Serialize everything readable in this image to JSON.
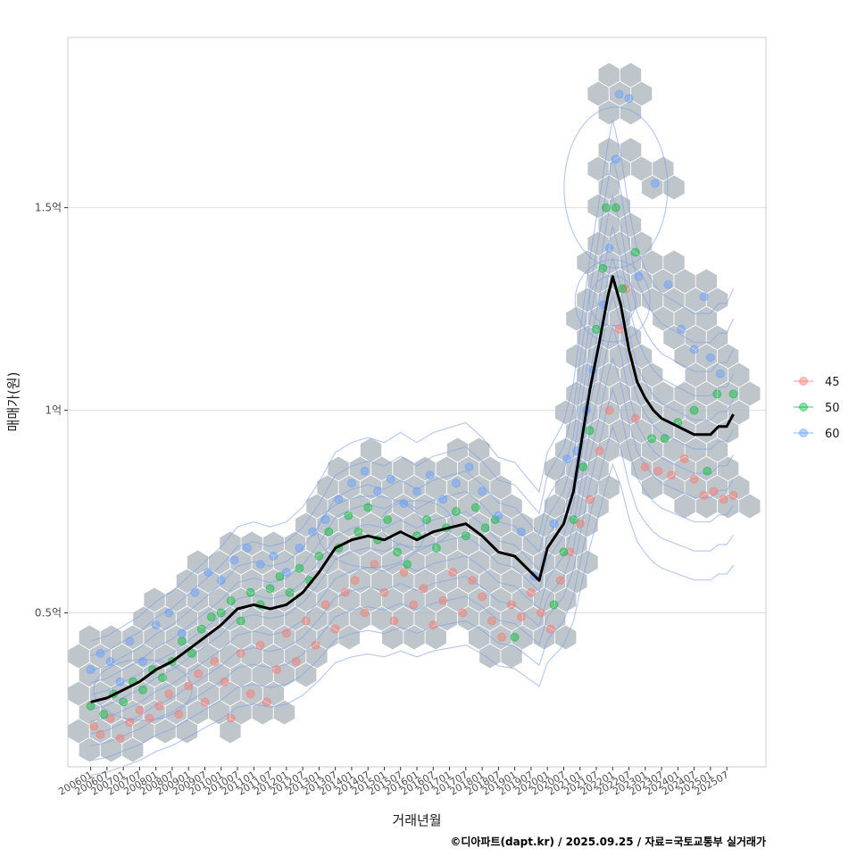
{
  "chart_data": {
    "type": "scatter",
    "title": "",
    "xlabel": "거래년월",
    "ylabel": "매매가(원)",
    "caption": "©디아파트(dapt.kr) / 2025.09.25 / 자료=국토교통부 실거래가",
    "x_tick_labels": [
      "200601",
      "200607",
      "200701",
      "200707",
      "200801",
      "200807",
      "200901",
      "200907",
      "201001",
      "201007",
      "201101",
      "201107",
      "201201",
      "201207",
      "201301",
      "201307",
      "201401",
      "201407",
      "201501",
      "201507",
      "201601",
      "201607",
      "201701",
      "201707",
      "201801",
      "201807",
      "201901",
      "201907",
      "202001",
      "202007",
      "202101",
      "202107",
      "202201",
      "202207",
      "202301",
      "202307",
      "202401",
      "202407",
      "202501",
      "202507"
    ],
    "y_ticks": [
      {
        "value": 0.5,
        "label": "0.5억"
      },
      {
        "value": 1.0,
        "label": "1억"
      },
      {
        "value": 1.5,
        "label": "1.5억"
      }
    ],
    "ylim": [
      0.12,
      1.92
    ],
    "xlim": [
      2005.3,
      2026.7
    ],
    "grid": true,
    "legend": {
      "position": "right",
      "entries": [
        {
          "label": "45",
          "color": "#F8766D"
        },
        {
          "label": "50",
          "color": "#00BA38"
        },
        {
          "label": "60",
          "color": "#619CFF"
        }
      ]
    },
    "colors": {
      "hex": "#b4bcc2",
      "contour": "#7d9ee8",
      "line": "#000000",
      "grid": "#dedede",
      "panel_border": "#cccccc"
    },
    "trend_line": {
      "name": "moving average price (억)",
      "x": [
        2006.0,
        2006.5,
        2007.0,
        2007.5,
        2008.0,
        2008.5,
        2009.0,
        2009.5,
        2010.0,
        2010.5,
        2011.0,
        2011.5,
        2012.0,
        2012.5,
        2013.0,
        2013.5,
        2014.0,
        2014.5,
        2015.0,
        2015.5,
        2016.0,
        2016.5,
        2017.0,
        2017.5,
        2018.0,
        2018.5,
        2019.0,
        2019.5,
        2019.75,
        2020.0,
        2020.5,
        2020.8,
        2021.0,
        2021.3,
        2021.6,
        2021.85,
        2022.0,
        2022.25,
        2022.5,
        2022.75,
        2023.0,
        2023.25,
        2023.5,
        2023.75,
        2024.0,
        2024.25,
        2024.5,
        2024.75,
        2025.0,
        2025.25,
        2025.5,
        2025.7
      ],
      "y": [
        0.28,
        0.29,
        0.31,
        0.33,
        0.36,
        0.38,
        0.41,
        0.44,
        0.47,
        0.51,
        0.52,
        0.51,
        0.52,
        0.55,
        0.6,
        0.66,
        0.68,
        0.69,
        0.68,
        0.7,
        0.68,
        0.7,
        0.71,
        0.72,
        0.69,
        0.65,
        0.64,
        0.6,
        0.58,
        0.66,
        0.72,
        0.8,
        0.9,
        1.05,
        1.17,
        1.28,
        1.33,
        1.26,
        1.15,
        1.07,
        1.03,
        1.0,
        0.98,
        0.97,
        0.96,
        0.95,
        0.94,
        0.94,
        0.94,
        0.96,
        0.96,
        0.99
      ]
    },
    "series": [
      {
        "name": "45",
        "color": "#F8766D",
        "points": [
          {
            "x": 2006.1,
            "y": 0.22
          },
          {
            "x": 2006.3,
            "y": 0.2
          },
          {
            "x": 2006.6,
            "y": 0.24
          },
          {
            "x": 2006.9,
            "y": 0.19
          },
          {
            "x": 2007.2,
            "y": 0.23
          },
          {
            "x": 2007.5,
            "y": 0.26
          },
          {
            "x": 2007.8,
            "y": 0.24
          },
          {
            "x": 2008.1,
            "y": 0.27
          },
          {
            "x": 2008.4,
            "y": 0.3
          },
          {
            "x": 2008.7,
            "y": 0.25
          },
          {
            "x": 2009.0,
            "y": 0.32
          },
          {
            "x": 2009.3,
            "y": 0.35
          },
          {
            "x": 2009.5,
            "y": 0.28
          },
          {
            "x": 2009.8,
            "y": 0.38
          },
          {
            "x": 2010.1,
            "y": 0.33
          },
          {
            "x": 2010.3,
            "y": 0.24
          },
          {
            "x": 2010.6,
            "y": 0.4
          },
          {
            "x": 2010.9,
            "y": 0.3
          },
          {
            "x": 2011.2,
            "y": 0.42
          },
          {
            "x": 2011.4,
            "y": 0.28
          },
          {
            "x": 2011.7,
            "y": 0.36
          },
          {
            "x": 2012.0,
            "y": 0.45
          },
          {
            "x": 2012.3,
            "y": 0.38
          },
          {
            "x": 2012.6,
            "y": 0.48
          },
          {
            "x": 2012.9,
            "y": 0.42
          },
          {
            "x": 2013.2,
            "y": 0.52
          },
          {
            "x": 2013.5,
            "y": 0.46
          },
          {
            "x": 2013.8,
            "y": 0.55
          },
          {
            "x": 2014.1,
            "y": 0.58
          },
          {
            "x": 2014.4,
            "y": 0.5
          },
          {
            "x": 2014.7,
            "y": 0.62
          },
          {
            "x": 2015.0,
            "y": 0.55
          },
          {
            "x": 2015.3,
            "y": 0.48
          },
          {
            "x": 2015.6,
            "y": 0.6
          },
          {
            "x": 2015.9,
            "y": 0.52
          },
          {
            "x": 2016.2,
            "y": 0.56
          },
          {
            "x": 2016.5,
            "y": 0.47
          },
          {
            "x": 2016.8,
            "y": 0.53
          },
          {
            "x": 2017.1,
            "y": 0.6
          },
          {
            "x": 2017.4,
            "y": 0.5
          },
          {
            "x": 2017.7,
            "y": 0.58
          },
          {
            "x": 2018.0,
            "y": 0.54
          },
          {
            "x": 2018.3,
            "y": 0.48
          },
          {
            "x": 2018.6,
            "y": 0.44
          },
          {
            "x": 2018.9,
            "y": 0.52
          },
          {
            "x": 2019.2,
            "y": 0.49
          },
          {
            "x": 2019.5,
            "y": 0.55
          },
          {
            "x": 2019.8,
            "y": 0.5
          },
          {
            "x": 2020.1,
            "y": 0.46
          },
          {
            "x": 2020.4,
            "y": 0.58
          },
          {
            "x": 2020.7,
            "y": 0.65
          },
          {
            "x": 2021.0,
            "y": 0.72
          },
          {
            "x": 2021.3,
            "y": 0.78
          },
          {
            "x": 2021.6,
            "y": 0.9
          },
          {
            "x": 2021.9,
            "y": 1.0
          },
          {
            "x": 2022.2,
            "y": 1.2
          },
          {
            "x": 2022.4,
            "y": 1.3
          },
          {
            "x": 2022.7,
            "y": 0.98
          },
          {
            "x": 2023.0,
            "y": 0.86
          },
          {
            "x": 2023.4,
            "y": 0.85
          },
          {
            "x": 2023.8,
            "y": 0.84
          },
          {
            "x": 2024.2,
            "y": 0.88
          },
          {
            "x": 2024.5,
            "y": 0.83
          },
          {
            "x": 2024.8,
            "y": 0.79
          },
          {
            "x": 2025.1,
            "y": 0.8
          },
          {
            "x": 2025.4,
            "y": 0.78
          },
          {
            "x": 2025.7,
            "y": 0.79
          }
        ]
      },
      {
        "name": "50",
        "color": "#00BA38",
        "points": [
          {
            "x": 2006.0,
            "y": 0.27
          },
          {
            "x": 2006.4,
            "y": 0.25
          },
          {
            "x": 2006.7,
            "y": 0.3
          },
          {
            "x": 2007.0,
            "y": 0.28
          },
          {
            "x": 2007.3,
            "y": 0.33
          },
          {
            "x": 2007.6,
            "y": 0.31
          },
          {
            "x": 2007.9,
            "y": 0.36
          },
          {
            "x": 2008.2,
            "y": 0.34
          },
          {
            "x": 2008.5,
            "y": 0.38
          },
          {
            "x": 2008.8,
            "y": 0.43
          },
          {
            "x": 2009.1,
            "y": 0.4
          },
          {
            "x": 2009.4,
            "y": 0.46
          },
          {
            "x": 2009.7,
            "y": 0.49
          },
          {
            "x": 2010.0,
            "y": 0.5
          },
          {
            "x": 2010.3,
            "y": 0.53
          },
          {
            "x": 2010.6,
            "y": 0.48
          },
          {
            "x": 2010.9,
            "y": 0.55
          },
          {
            "x": 2011.2,
            "y": 0.52
          },
          {
            "x": 2011.5,
            "y": 0.56
          },
          {
            "x": 2011.8,
            "y": 0.59
          },
          {
            "x": 2012.1,
            "y": 0.55
          },
          {
            "x": 2012.4,
            "y": 0.61
          },
          {
            "x": 2012.7,
            "y": 0.58
          },
          {
            "x": 2013.0,
            "y": 0.64
          },
          {
            "x": 2013.3,
            "y": 0.7
          },
          {
            "x": 2013.6,
            "y": 0.66
          },
          {
            "x": 2013.9,
            "y": 0.74
          },
          {
            "x": 2014.2,
            "y": 0.7
          },
          {
            "x": 2014.5,
            "y": 0.76
          },
          {
            "x": 2014.8,
            "y": 0.68
          },
          {
            "x": 2015.1,
            "y": 0.73
          },
          {
            "x": 2015.4,
            "y": 0.65
          },
          {
            "x": 2015.7,
            "y": 0.62
          },
          {
            "x": 2016.0,
            "y": 0.69
          },
          {
            "x": 2016.3,
            "y": 0.73
          },
          {
            "x": 2016.6,
            "y": 0.66
          },
          {
            "x": 2016.9,
            "y": 0.71
          },
          {
            "x": 2017.2,
            "y": 0.75
          },
          {
            "x": 2017.5,
            "y": 0.69
          },
          {
            "x": 2017.8,
            "y": 0.76
          },
          {
            "x": 2018.1,
            "y": 0.71
          },
          {
            "x": 2018.4,
            "y": 0.73
          },
          {
            "x": 2019.0,
            "y": 0.44
          },
          {
            "x": 2020.2,
            "y": 0.52
          },
          {
            "x": 2020.5,
            "y": 0.65
          },
          {
            "x": 2020.8,
            "y": 0.73
          },
          {
            "x": 2021.1,
            "y": 0.86
          },
          {
            "x": 2021.3,
            "y": 0.95
          },
          {
            "x": 2021.5,
            "y": 1.2
          },
          {
            "x": 2021.7,
            "y": 1.35
          },
          {
            "x": 2021.8,
            "y": 1.5
          },
          {
            "x": 2022.1,
            "y": 1.5
          },
          {
            "x": 2022.3,
            "y": 1.3
          },
          {
            "x": 2022.7,
            "y": 1.39
          },
          {
            "x": 2023.2,
            "y": 0.93
          },
          {
            "x": 2023.6,
            "y": 0.93
          },
          {
            "x": 2024.0,
            "y": 0.97
          },
          {
            "x": 2024.5,
            "y": 1.0
          },
          {
            "x": 2024.9,
            "y": 0.85
          },
          {
            "x": 2025.2,
            "y": 1.04
          },
          {
            "x": 2025.7,
            "y": 1.04
          }
        ]
      },
      {
        "name": "60",
        "color": "#619CFF",
        "points": [
          {
            "x": 2006.0,
            "y": 0.36
          },
          {
            "x": 2006.3,
            "y": 0.4
          },
          {
            "x": 2006.6,
            "y": 0.38
          },
          {
            "x": 2006.9,
            "y": 0.33
          },
          {
            "x": 2007.2,
            "y": 0.43
          },
          {
            "x": 2007.6,
            "y": 0.38
          },
          {
            "x": 2008.0,
            "y": 0.47
          },
          {
            "x": 2008.4,
            "y": 0.5
          },
          {
            "x": 2008.8,
            "y": 0.45
          },
          {
            "x": 2009.2,
            "y": 0.55
          },
          {
            "x": 2009.6,
            "y": 0.6
          },
          {
            "x": 2010.0,
            "y": 0.58
          },
          {
            "x": 2010.4,
            "y": 0.63
          },
          {
            "x": 2010.8,
            "y": 0.66
          },
          {
            "x": 2011.2,
            "y": 0.62
          },
          {
            "x": 2011.6,
            "y": 0.64
          },
          {
            "x": 2012.0,
            "y": 0.6
          },
          {
            "x": 2012.4,
            "y": 0.66
          },
          {
            "x": 2012.8,
            "y": 0.7
          },
          {
            "x": 2013.2,
            "y": 0.73
          },
          {
            "x": 2013.6,
            "y": 0.78
          },
          {
            "x": 2014.0,
            "y": 0.82
          },
          {
            "x": 2014.4,
            "y": 0.85
          },
          {
            "x": 2014.8,
            "y": 0.8
          },
          {
            "x": 2015.2,
            "y": 0.83
          },
          {
            "x": 2015.6,
            "y": 0.77
          },
          {
            "x": 2016.0,
            "y": 0.8
          },
          {
            "x": 2016.4,
            "y": 0.84
          },
          {
            "x": 2016.8,
            "y": 0.78
          },
          {
            "x": 2017.2,
            "y": 0.82
          },
          {
            "x": 2017.6,
            "y": 0.86
          },
          {
            "x": 2018.0,
            "y": 0.8
          },
          {
            "x": 2018.5,
            "y": 0.74
          },
          {
            "x": 2019.2,
            "y": 0.7
          },
          {
            "x": 2019.6,
            "y": 0.59
          },
          {
            "x": 2020.2,
            "y": 0.72
          },
          {
            "x": 2020.6,
            "y": 0.88
          },
          {
            "x": 2020.9,
            "y": 0.9
          },
          {
            "x": 2021.2,
            "y": 1.0
          },
          {
            "x": 2021.4,
            "y": 1.1
          },
          {
            "x": 2021.7,
            "y": 1.26
          },
          {
            "x": 2021.9,
            "y": 1.4
          },
          {
            "x": 2022.1,
            "y": 1.62
          },
          {
            "x": 2022.2,
            "y": 1.78
          },
          {
            "x": 2022.5,
            "y": 1.77
          },
          {
            "x": 2022.8,
            "y": 1.33
          },
          {
            "x": 2023.3,
            "y": 1.56
          },
          {
            "x": 2023.7,
            "y": 1.31
          },
          {
            "x": 2024.1,
            "y": 1.2
          },
          {
            "x": 2024.5,
            "y": 1.15
          },
          {
            "x": 2024.8,
            "y": 1.28
          },
          {
            "x": 2025.0,
            "y": 1.13
          },
          {
            "x": 2025.3,
            "y": 1.09
          }
        ]
      }
    ]
  }
}
